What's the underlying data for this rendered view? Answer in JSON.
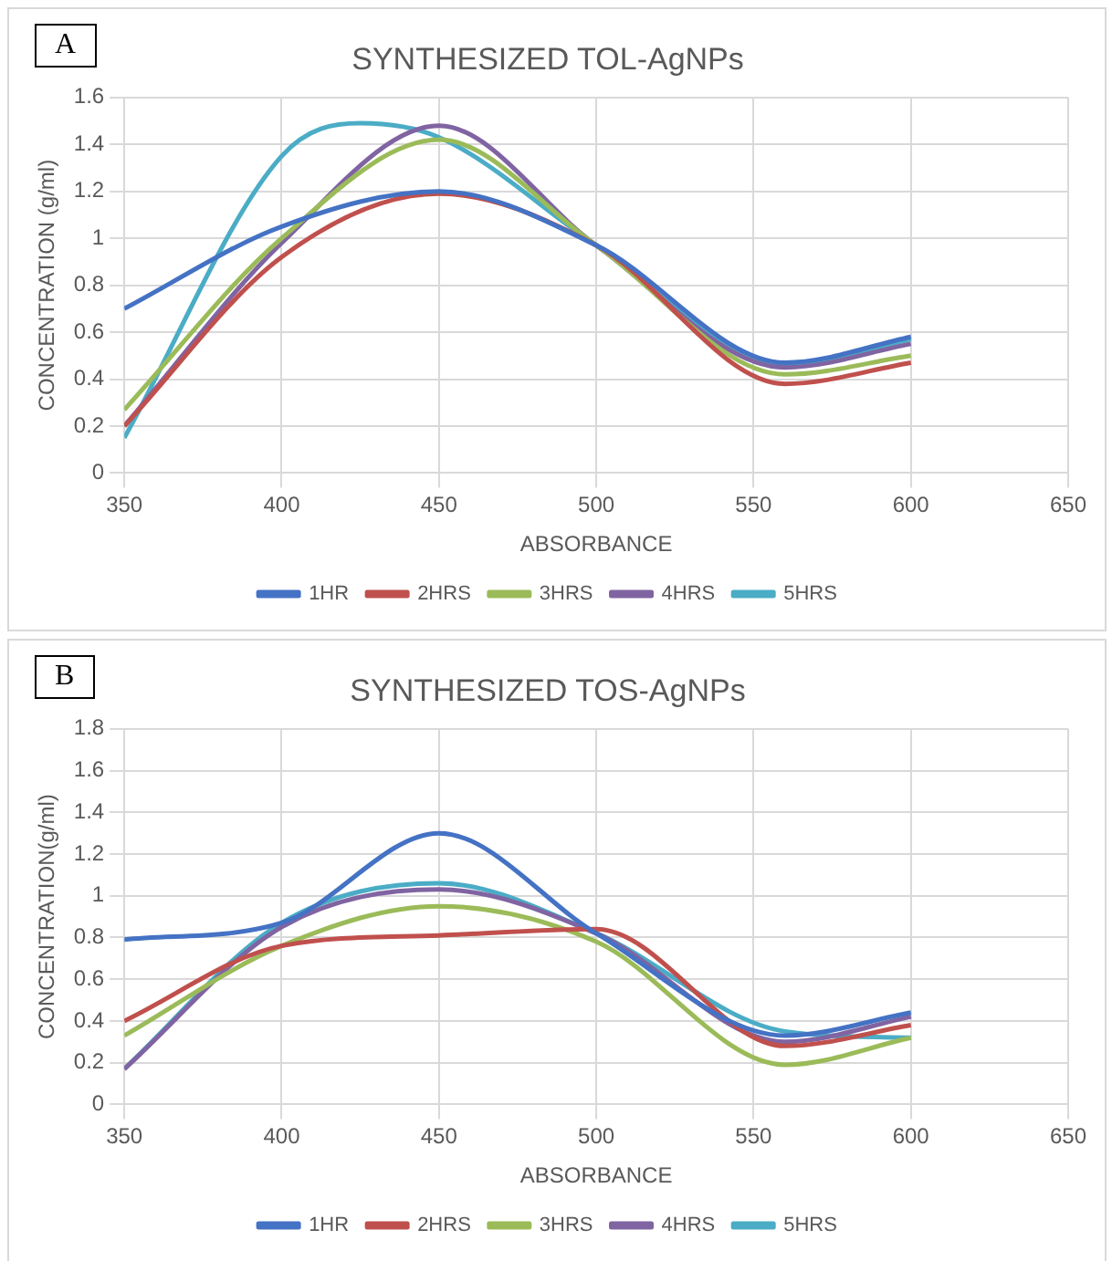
{
  "chart_data": [
    {
      "type": "line",
      "title": "SYNTHESIZED TOL-AgNPs",
      "xlabel": "ABSORBANCE",
      "ylabel": "CONCENTRATION (g/ml)",
      "annotations": [
        "A"
      ],
      "x": [
        350,
        400,
        450,
        500,
        560,
        600
      ],
      "xlim": [
        350,
        650
      ],
      "xticks": [
        350,
        400,
        450,
        500,
        550,
        600,
        650
      ],
      "ylim": [
        0,
        1.6
      ],
      "yticks": [
        0,
        0.2,
        0.4,
        0.6,
        0.8,
        1,
        1.2,
        1.4,
        1.6
      ],
      "grid": true,
      "legend": "bottom",
      "marker": "none",
      "line_style": "solid",
      "series": [
        {
          "name": "1HR",
          "color": "#4472c4",
          "values": [
            0.7,
            1.05,
            1.2,
            0.97,
            0.47,
            0.58
          ]
        },
        {
          "name": "2HRS",
          "color": "#c0504d",
          "values": [
            0.2,
            0.92,
            1.19,
            0.97,
            0.38,
            0.47
          ]
        },
        {
          "name": "3HRS",
          "color": "#9bbb59",
          "values": [
            0.27,
            1.0,
            1.42,
            0.97,
            0.42,
            0.5
          ]
        },
        {
          "name": "4HRS",
          "color": "#8064a2",
          "values": [
            0.2,
            0.98,
            1.48,
            0.97,
            0.45,
            0.55
          ]
        },
        {
          "name": "5HRS",
          "color": "#4bacc6",
          "x": [
            350,
            400,
            425,
            450,
            500,
            560,
            600
          ],
          "values": [
            0.15,
            1.35,
            1.49,
            1.43,
            0.97,
            0.46,
            0.57
          ]
        }
      ]
    },
    {
      "type": "line",
      "title": "SYNTHESIZED TOS-AgNPs",
      "xlabel": "ABSORBANCE",
      "ylabel": "CONCENTRATION(g/ml)",
      "annotations": [
        "B"
      ],
      "x": [
        350,
        400,
        450,
        500,
        560,
        600
      ],
      "xlim": [
        350,
        650
      ],
      "xticks": [
        350,
        400,
        450,
        500,
        550,
        600,
        650
      ],
      "ylim": [
        0,
        1.8
      ],
      "yticks": [
        0,
        0.2,
        0.4,
        0.6,
        0.8,
        1,
        1.2,
        1.4,
        1.6,
        1.8
      ],
      "grid": true,
      "legend": "bottom",
      "marker": "none",
      "line_style": "solid",
      "series": [
        {
          "name": "1HR",
          "color": "#4472c4",
          "values": [
            0.79,
            0.87,
            1.3,
            0.82,
            0.33,
            0.44
          ]
        },
        {
          "name": "2HRS",
          "color": "#c0504d",
          "values": [
            0.4,
            0.76,
            0.81,
            0.84,
            0.28,
            0.38
          ]
        },
        {
          "name": "3HRS",
          "color": "#9bbb59",
          "values": [
            0.33,
            0.76,
            0.95,
            0.78,
            0.19,
            0.32
          ]
        },
        {
          "name": "4HRS",
          "color": "#8064a2",
          "values": [
            0.17,
            0.85,
            1.03,
            0.82,
            0.3,
            0.42
          ]
        },
        {
          "name": "5HRS",
          "color": "#4bacc6",
          "values": [
            0.17,
            0.87,
            1.06,
            0.82,
            0.35,
            0.32
          ]
        }
      ]
    }
  ]
}
